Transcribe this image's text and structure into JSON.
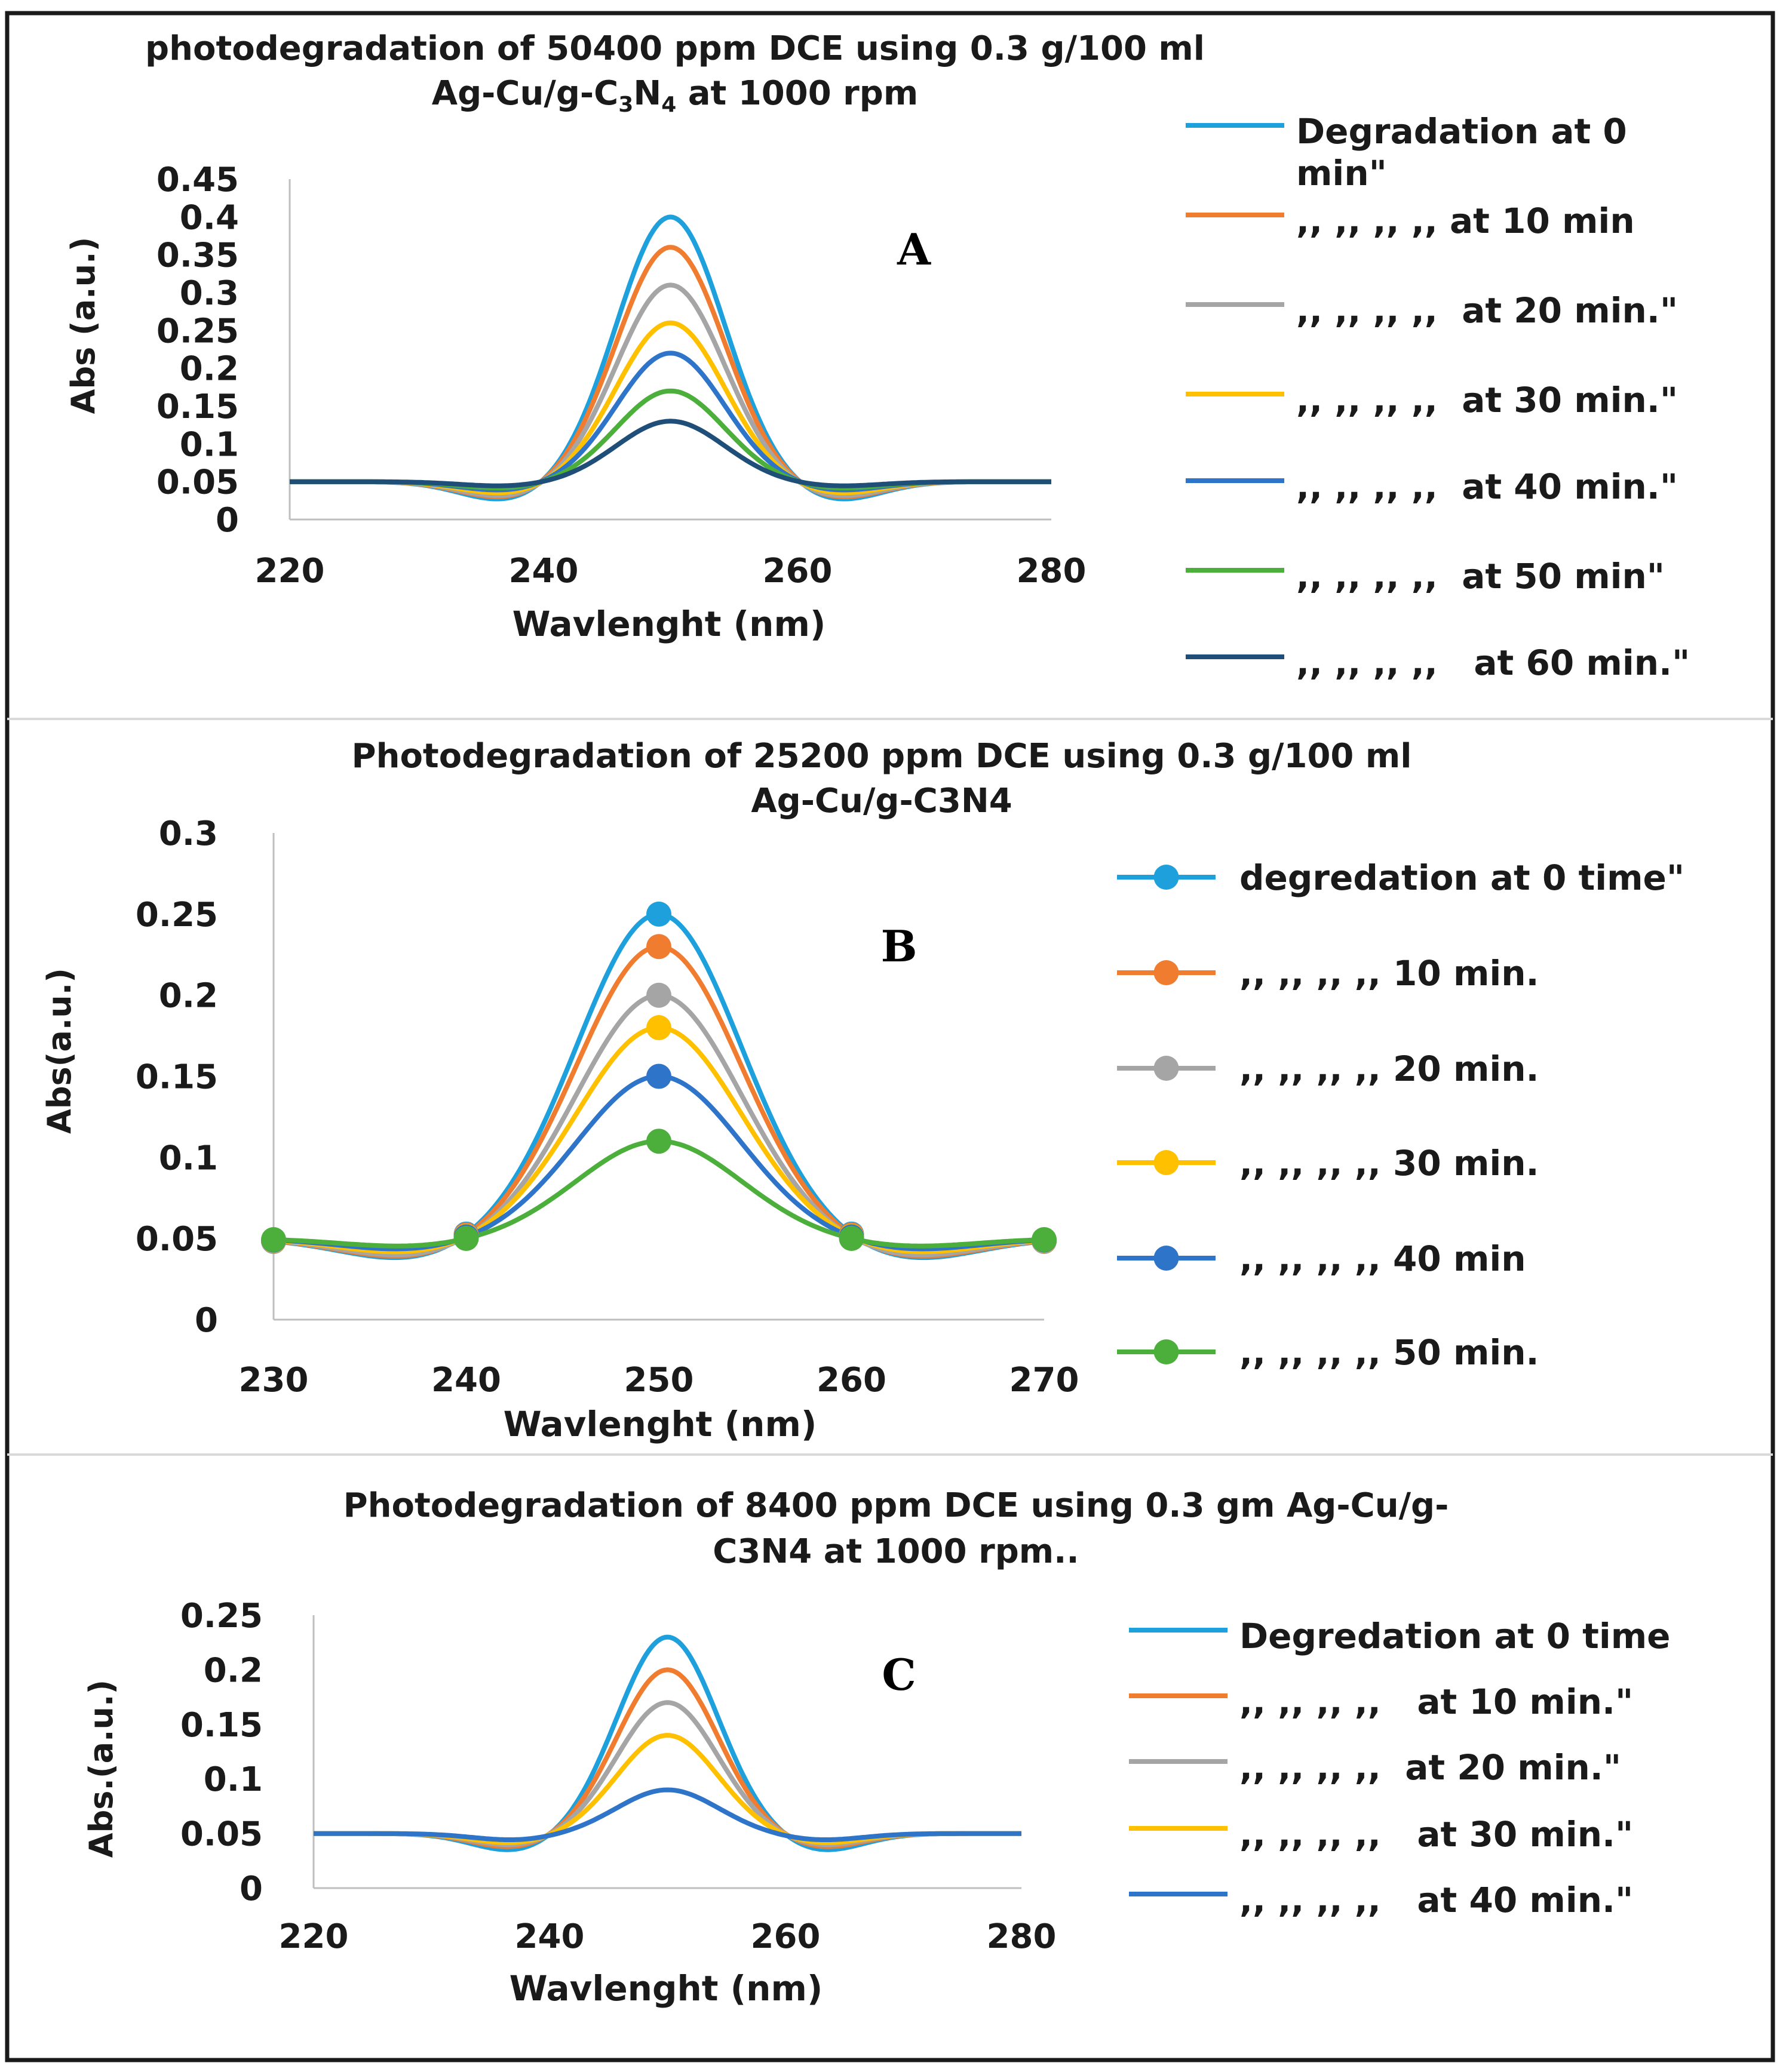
{
  "chart_data": [
    {
      "panel": "A",
      "type": "line",
      "title_line1": "photodegradation of 50400 ppm DCE using 0.3 g/100 ml",
      "title_line2_prefix": "Ag-Cu/g-C",
      "title_sub1": "3",
      "title_mid": "N",
      "title_sub2": "4",
      "title_line2_suffix": " at 1000 rpm",
      "xlabel": "Wavlenght (nm)",
      "ylabel": "Abs (a.u.)",
      "xlim": [
        220,
        280
      ],
      "ylim": [
        0,
        0.45
      ],
      "xticks": [
        220,
        240,
        260,
        280
      ],
      "yticks": [
        0,
        0.05,
        0.1,
        0.15,
        0.2,
        0.25,
        0.3,
        0.35,
        0.4,
        0.45
      ],
      "ytick_labels": [
        "0",
        "0.05",
        "0.1",
        "0.15",
        "0.2",
        "0.25",
        "0.3",
        "0.35",
        "0.4",
        "0.45"
      ],
      "baseline": 0.05,
      "peak_center": 250,
      "markers": false,
      "series": [
        {
          "name": "Degradation at 0 min\"",
          "legend_lines": [
            "Degradation at 0",
            "min\""
          ],
          "color": "#1da0dc",
          "peak": 0.4,
          "dip": 0.025
        },
        {
          "name": ",, ,, ,, ,, at 10 min",
          "legend_lines": [
            ",, ,, ,, ,, at 10 min"
          ],
          "color": "#f07c30",
          "peak": 0.36,
          "dip": 0.022
        },
        {
          "name": ",, ,, ,, ,,  at 20 min.\"",
          "legend_lines": [
            ",, ,, ,, ,,  at 20 min.\""
          ],
          "color": "#a5a5a5",
          "peak": 0.31,
          "dip": 0.02
        },
        {
          "name": ",, ,, ,, ,,  at 30 min.\"",
          "legend_lines": [
            ",, ,, ,, ,,  at 30 min.\""
          ],
          "color": "#ffc000",
          "peak": 0.26,
          "dip": 0.016
        },
        {
          "name": ",, ,, ,, ,,  at 40 min.\"",
          "legend_lines": [
            ",, ,, ,, ,,  at 40 min.\""
          ],
          "color": "#2e74c8",
          "peak": 0.22,
          "dip": 0.012
        },
        {
          "name": ",, ,, ,, ,,  at 50 min\"",
          "legend_lines": [
            ",, ,, ,, ,,  at 50 min\""
          ],
          "color": "#4caf3c",
          "peak": 0.17,
          "dip": 0.009
        },
        {
          "name": ",, ,, ,, ,,   at 60 min.\"",
          "legend_lines": [
            ",, ,, ,, ,,   at 60 min.\""
          ],
          "color": "#1f4e79",
          "peak": 0.13,
          "dip": 0.006
        }
      ]
    },
    {
      "panel": "B",
      "type": "line",
      "title_line1": "Photodegradation of 25200 ppm DCE using 0.3 g/100 ml",
      "title_line2": "Ag-Cu/g-C3N4",
      "xlabel": "Wavlenght (nm)",
      "ylabel": "Abs(a.u.)",
      "xlim": [
        230,
        270
      ],
      "ylim": [
        0,
        0.3
      ],
      "xticks": [
        230,
        240,
        250,
        260,
        270
      ],
      "yticks": [
        0,
        0.05,
        0.1,
        0.15,
        0.2,
        0.25,
        0.3
      ],
      "ytick_labels": [
        "0",
        "0.05",
        "0.1",
        "0.15",
        "0.2",
        "0.25",
        "0.3"
      ],
      "baseline": 0.05,
      "peak_center": 250,
      "markers": true,
      "marker_x": [
        230,
        240,
        250,
        260,
        270
      ],
      "series": [
        {
          "name": "degredation at 0 time\"",
          "legend_lines": [
            "degredation at 0 time\""
          ],
          "color": "#1da0dc",
          "peak": 0.25,
          "dip": 0.013
        },
        {
          "name": ",, ,, ,, ,, 10 min.",
          "legend_lines": [
            ",, ,, ,, ,, 10 min."
          ],
          "color": "#f07c30",
          "peak": 0.23,
          "dip": 0.012
        },
        {
          "name": ",, ,, ,, ,, 20 min.",
          "legend_lines": [
            ",, ,, ,, ,, 20 min."
          ],
          "color": "#a5a5a5",
          "peak": 0.2,
          "dip": 0.011
        },
        {
          "name": ",, ,, ,, ,, 30 min.",
          "legend_lines": [
            ",, ,, ,, ,, 30 min."
          ],
          "color": "#ffc000",
          "peak": 0.18,
          "dip": 0.009
        },
        {
          "name": ",, ,, ,, ,, 40 min",
          "legend_lines": [
            ",, ,, ,, ,, 40 min"
          ],
          "color": "#2e74c8",
          "peak": 0.15,
          "dip": 0.007
        },
        {
          "name": ",, ,, ,, ,, 50 min.",
          "legend_lines": [
            ",, ,, ,, ,, 50 min."
          ],
          "color": "#4caf3c",
          "peak": 0.11,
          "dip": 0.005
        }
      ]
    },
    {
      "panel": "C",
      "type": "line",
      "title_line1": "Photodegradation of 8400 ppm DCE using 0.3 gm Ag-Cu/g-",
      "title_line2": "C3N4 at 1000 rpm..",
      "xlabel": "Wavlenght (nm)",
      "ylabel": "Abs.(a.u.)",
      "xlim": [
        220,
        280
      ],
      "ylim": [
        0,
        0.25
      ],
      "xticks": [
        220,
        240,
        260,
        280
      ],
      "yticks": [
        0,
        0.05,
        0.1,
        0.15,
        0.2,
        0.25
      ],
      "ytick_labels": [
        "0",
        "0.05",
        "0.1",
        "0.15",
        "0.2",
        "0.25"
      ],
      "baseline": 0.05,
      "peak_center": 250,
      "markers": false,
      "series": [
        {
          "name": "Degredation at 0 time",
          "legend_lines": [
            "Degredation at 0 time"
          ],
          "color": "#1da0dc",
          "peak": 0.23,
          "dip": 0.016
        },
        {
          "name": ",, ,, ,, ,,   at 10 min.\"",
          "legend_lines": [
            ",, ,, ,, ,,   at 10 min.\""
          ],
          "color": "#f07c30",
          "peak": 0.2,
          "dip": 0.013
        },
        {
          "name": ",, ,, ,, ,,  at 20 min.\"",
          "legend_lines": [
            ",, ,, ,, ,,  at 20 min.\""
          ],
          "color": "#a5a5a5",
          "peak": 0.17,
          "dip": 0.011
        },
        {
          "name": ",, ,, ,, ,,   at 30 min.\"",
          "legend_lines": [
            ",, ,, ,, ,,   at 30 min.\""
          ],
          "color": "#ffc000",
          "peak": 0.14,
          "dip": 0.009
        },
        {
          "name": ",, ,, ,, ,,   at 40 min.\"",
          "legend_lines": [
            ",, ,, ,, ,,   at 40 min.\""
          ],
          "color": "#2e74c8",
          "peak": 0.09,
          "dip": 0.006
        }
      ]
    }
  ]
}
